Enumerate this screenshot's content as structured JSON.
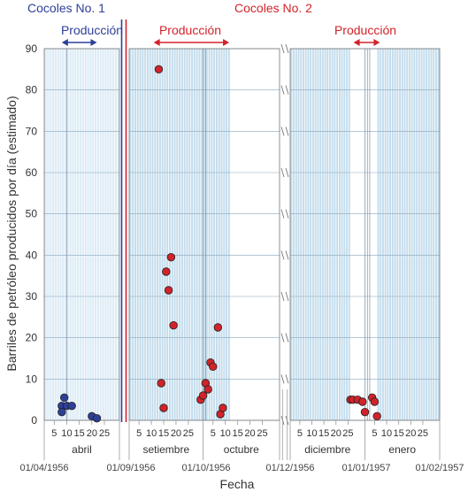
{
  "chart_data": {
    "type": "scatter",
    "title": "",
    "xlabel": "Fecha",
    "ylabel": "Barriles de petróleo producidos por día (estimado)",
    "ylim": [
      0,
      90
    ],
    "yticks": [
      0,
      10,
      20,
      30,
      40,
      50,
      60,
      70,
      80,
      90
    ],
    "date_labels": [
      "01/04/1956",
      "01/09/1956",
      "01/10/1956",
      "01/12/1956",
      "01/01/1957",
      "01/02/1957"
    ],
    "months": [
      {
        "name": "abril",
        "day_ticks": [
          "5",
          "10",
          "15",
          "20",
          "25"
        ]
      },
      {
        "name": "setiembre",
        "day_ticks": [
          "5",
          "10",
          "15",
          "20",
          "25"
        ]
      },
      {
        "name": "octubre",
        "day_ticks": [
          "5",
          "10",
          "15",
          "20",
          "25"
        ]
      },
      {
        "name": "diciembre",
        "day_ticks": [
          "5",
          "10",
          "15",
          "20",
          "25"
        ]
      },
      {
        "name": "enero",
        "day_ticks": [
          "5",
          "10",
          "15",
          "20",
          "25"
        ]
      }
    ],
    "x_axis_break": "between octubre and diciembre",
    "grid": true,
    "wells": [
      {
        "name": "Cocoles No. 1",
        "color": "#2e3f98",
        "production_label": "Producción",
        "production_period": [
          "1956-04-08",
          "1956-04-22"
        ]
      },
      {
        "name": "Cocoles No. 2",
        "color": "#d2232a",
        "production_label": "Producción",
        "production_period": [
          "1956-09-12",
          "1956-10-13"
        ],
        "second_production_label": "Producción",
        "second_production_period": [
          "1956-12-28",
          "1957-01-05"
        ]
      }
    ],
    "series": [
      {
        "name": "Cocoles No. 1",
        "color": "#2e3f98",
        "points": [
          {
            "x": "1956-04-08",
            "y": 3.5
          },
          {
            "x": "1956-04-08",
            "y": 2
          },
          {
            "x": "1956-04-09",
            "y": 5.5
          },
          {
            "x": "1956-04-10",
            "y": 3.5
          },
          {
            "x": "1956-04-12",
            "y": 3.5
          },
          {
            "x": "1956-04-20",
            "y": 1
          },
          {
            "x": "1956-04-22",
            "y": 0.5
          }
        ]
      },
      {
        "name": "Cocoles No. 2",
        "color": "#d2232a",
        "points": [
          {
            "x": "1956-09-13",
            "y": 85
          },
          {
            "x": "1956-09-14",
            "y": 9
          },
          {
            "x": "1956-09-15",
            "y": 3
          },
          {
            "x": "1956-09-16",
            "y": 36
          },
          {
            "x": "1956-09-17",
            "y": 31.5
          },
          {
            "x": "1956-09-18",
            "y": 39.5
          },
          {
            "x": "1956-09-19",
            "y": 23
          },
          {
            "x": "1956-09-30",
            "y": 5
          },
          {
            "x": "1956-10-01",
            "y": 6
          },
          {
            "x": "1956-10-02",
            "y": 9
          },
          {
            "x": "1956-10-03",
            "y": 7.5
          },
          {
            "x": "1956-10-04",
            "y": 14
          },
          {
            "x": "1956-10-05",
            "y": 13
          },
          {
            "x": "1956-10-07",
            "y": 22.5
          },
          {
            "x": "1956-10-08",
            "y": 1.5
          },
          {
            "x": "1956-10-09",
            "y": 3
          },
          {
            "x": "1956-12-26",
            "y": 5
          },
          {
            "x": "1956-12-27",
            "y": 5
          },
          {
            "x": "1956-12-29",
            "y": 5
          },
          {
            "x": "1956-12-31",
            "y": 4.5
          },
          {
            "x": "1957-01-01",
            "y": 2
          },
          {
            "x": "1957-01-04",
            "y": 5.5
          },
          {
            "x": "1957-01-05",
            "y": 4.5
          },
          {
            "x": "1957-01-06",
            "y": 1
          }
        ]
      }
    ]
  }
}
